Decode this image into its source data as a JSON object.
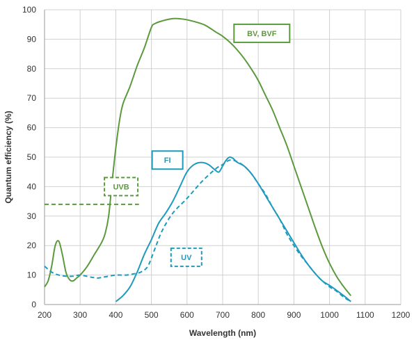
{
  "chart_data": {
    "type": "line",
    "title": "",
    "xlabel": "Wavelength (nm)",
    "ylabel": "Quantum efficiency (%)",
    "xlim": [
      200,
      1200
    ],
    "ylim": [
      0,
      100
    ],
    "x_ticks": [
      200,
      300,
      400,
      500,
      600,
      700,
      800,
      900,
      1000,
      1100,
      1200
    ],
    "y_ticks": [
      0,
      10,
      20,
      30,
      40,
      50,
      60,
      70,
      80,
      90,
      100
    ],
    "grid": true,
    "series": [
      {
        "name": "BV, BVF",
        "color": "#5b9a3c",
        "dash": "solid",
        "points": [
          [
            200,
            6
          ],
          [
            210,
            8
          ],
          [
            220,
            13
          ],
          [
            230,
            20
          ],
          [
            240,
            21.5
          ],
          [
            250,
            17
          ],
          [
            260,
            11
          ],
          [
            270,
            8.5
          ],
          [
            280,
            8
          ],
          [
            290,
            9
          ],
          [
            300,
            10
          ],
          [
            320,
            13
          ],
          [
            340,
            17
          ],
          [
            360,
            21
          ],
          [
            370,
            24
          ],
          [
            380,
            30
          ],
          [
            390,
            42
          ],
          [
            400,
            53
          ],
          [
            410,
            62
          ],
          [
            420,
            68
          ],
          [
            440,
            74
          ],
          [
            460,
            81
          ],
          [
            480,
            87
          ],
          [
            500,
            94
          ],
          [
            510,
            95.3
          ],
          [
            530,
            96.2
          ],
          [
            560,
            97
          ],
          [
            590,
            96.8
          ],
          [
            620,
            96
          ],
          [
            650,
            94.8
          ],
          [
            680,
            92.5
          ],
          [
            700,
            91
          ],
          [
            720,
            89
          ],
          [
            740,
            86.5
          ],
          [
            760,
            83.5
          ],
          [
            780,
            80
          ],
          [
            800,
            76
          ],
          [
            820,
            71
          ],
          [
            840,
            66
          ],
          [
            860,
            60
          ],
          [
            880,
            54
          ],
          [
            900,
            47
          ],
          [
            920,
            40
          ],
          [
            940,
            33
          ],
          [
            960,
            26
          ],
          [
            980,
            19.5
          ],
          [
            1000,
            14
          ],
          [
            1020,
            9.5
          ],
          [
            1040,
            6
          ],
          [
            1060,
            3
          ]
        ]
      },
      {
        "name": "FI",
        "color": "#1e9abd",
        "dash": "solid",
        "points": [
          [
            400,
            1
          ],
          [
            420,
            3
          ],
          [
            440,
            6
          ],
          [
            460,
            11
          ],
          [
            480,
            17
          ],
          [
            500,
            22
          ],
          [
            520,
            27.5
          ],
          [
            540,
            31
          ],
          [
            560,
            35
          ],
          [
            580,
            40
          ],
          [
            600,
            45
          ],
          [
            620,
            47.5
          ],
          [
            640,
            48.2
          ],
          [
            660,
            47.5
          ],
          [
            680,
            45.5
          ],
          [
            690,
            45
          ],
          [
            700,
            47
          ],
          [
            710,
            49
          ],
          [
            720,
            50
          ],
          [
            730,
            49.5
          ],
          [
            740,
            48.3
          ],
          [
            760,
            47
          ],
          [
            780,
            44.5
          ],
          [
            800,
            41
          ],
          [
            820,
            37
          ],
          [
            840,
            33
          ],
          [
            860,
            29
          ],
          [
            880,
            25
          ],
          [
            900,
            21
          ],
          [
            920,
            17
          ],
          [
            940,
            13.5
          ],
          [
            960,
            10.5
          ],
          [
            980,
            8
          ],
          [
            1000,
            6.5
          ],
          [
            1020,
            4.8
          ],
          [
            1040,
            3
          ],
          [
            1060,
            1
          ]
        ]
      },
      {
        "name": "UV",
        "color": "#1e9abd",
        "dash": "dashed",
        "points": [
          [
            200,
            13
          ],
          [
            220,
            11
          ],
          [
            240,
            10
          ],
          [
            260,
            9.6
          ],
          [
            280,
            9.6
          ],
          [
            300,
            10
          ],
          [
            330,
            9.3
          ],
          [
            350,
            9
          ],
          [
            370,
            9.4
          ],
          [
            400,
            10
          ],
          [
            430,
            10
          ],
          [
            450,
            10.4
          ],
          [
            470,
            11
          ],
          [
            490,
            13
          ],
          [
            510,
            19
          ],
          [
            530,
            25
          ],
          [
            560,
            31
          ],
          [
            600,
            36
          ],
          [
            640,
            41.5
          ],
          [
            680,
            46
          ],
          [
            700,
            47.5
          ],
          [
            720,
            49
          ],
          [
            740,
            48.5
          ],
          [
            760,
            47
          ],
          [
            780,
            44.5
          ],
          [
            800,
            41
          ],
          [
            820,
            37.5
          ],
          [
            840,
            33
          ],
          [
            860,
            29
          ],
          [
            880,
            24
          ],
          [
            900,
            20
          ],
          [
            920,
            16.5
          ],
          [
            940,
            13.5
          ],
          [
            960,
            10.5
          ],
          [
            980,
            8
          ],
          [
            1000,
            6
          ],
          [
            1020,
            4.5
          ],
          [
            1040,
            2.5
          ],
          [
            1060,
            1
          ]
        ]
      },
      {
        "name": "UVB",
        "color": "#5b9a3c",
        "dash": "dashed",
        "points": [
          [
            200,
            34
          ],
          [
            465,
            34
          ]
        ]
      }
    ],
    "legend_boxes": [
      {
        "label": "BV, BVF",
        "color": "#5b9a3c",
        "dash": "solid",
        "x": 810,
        "y": 92
      },
      {
        "label": "FI",
        "color": "#1e9abd",
        "dash": "solid",
        "x": 545,
        "y": 49
      },
      {
        "label": "UVB",
        "color": "#5b9a3c",
        "dash": "dashed",
        "x": 415,
        "y": 40
      },
      {
        "label": "UV",
        "color": "#1e9abd",
        "dash": "dashed",
        "x": 598,
        "y": 16
      }
    ]
  }
}
